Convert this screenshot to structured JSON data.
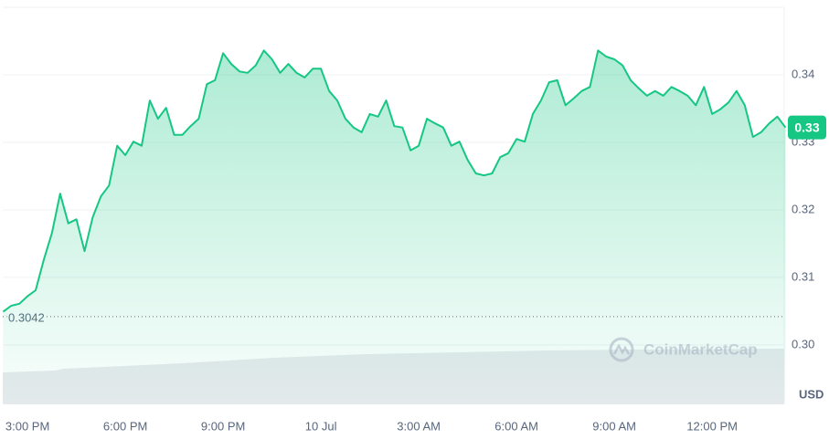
{
  "chart_data": {
    "type": "line",
    "x": [
      14.25,
      14.5,
      14.75,
      15,
      15.25,
      15.5,
      15.75,
      16,
      16.25,
      16.5,
      16.75,
      17,
      17.25,
      17.5,
      17.75,
      18,
      18.25,
      18.5,
      18.75,
      19,
      19.25,
      19.5,
      19.75,
      20,
      20.25,
      20.5,
      20.75,
      21,
      21.25,
      21.5,
      21.75,
      22,
      22.25,
      22.5,
      22.75,
      23,
      23.25,
      23.5,
      23.75,
      24,
      24.25,
      24.5,
      24.75,
      25,
      25.25,
      25.5,
      25.75,
      26,
      26.25,
      26.5,
      26.75,
      27,
      27.25,
      27.5,
      27.75,
      28,
      28.25,
      28.5,
      28.75,
      29,
      29.25,
      29.5,
      29.75,
      30,
      30.25,
      30.5,
      30.75,
      31,
      31.25,
      31.5,
      31.75,
      32,
      32.25,
      32.5,
      32.75,
      33,
      33.25,
      33.5,
      33.75,
      34,
      34.25,
      34.5,
      34.75,
      35,
      35.25,
      35.5,
      35.75,
      36,
      36.25,
      36.5,
      36.75,
      37,
      37.25,
      37.5,
      37.75,
      38,
      38.25
    ],
    "values": [
      0.3049,
      0.3058,
      0.3061,
      0.3072,
      0.3081,
      0.3126,
      0.3166,
      0.3224,
      0.318,
      0.3186,
      0.3139,
      0.3189,
      0.322,
      0.3236,
      0.3295,
      0.3281,
      0.3301,
      0.3295,
      0.3362,
      0.3335,
      0.3351,
      0.3311,
      0.3311,
      0.3324,
      0.3335,
      0.3386,
      0.3392,
      0.3432,
      0.3416,
      0.3405,
      0.3403,
      0.3414,
      0.3436,
      0.3423,
      0.3403,
      0.3416,
      0.3403,
      0.3396,
      0.3409,
      0.3409,
      0.3376,
      0.3362,
      0.3335,
      0.3322,
      0.3315,
      0.3342,
      0.3338,
      0.3362,
      0.3324,
      0.3322,
      0.3288,
      0.3295,
      0.3335,
      0.3328,
      0.3322,
      0.3295,
      0.3301,
      0.3274,
      0.3254,
      0.3251,
      0.3254,
      0.3278,
      0.3284,
      0.3305,
      0.3301,
      0.3342,
      0.3362,
      0.3389,
      0.3392,
      0.3355,
      0.3365,
      0.3376,
      0.3382,
      0.3436,
      0.3427,
      0.3423,
      0.3414,
      0.3392,
      0.338,
      0.3369,
      0.3376,
      0.3369,
      0.3382,
      0.3376,
      0.3369,
      0.3355,
      0.3382,
      0.3342,
      0.3349,
      0.3359,
      0.3376,
      0.3355,
      0.3308,
      0.3315,
      0.3328,
      0.3338,
      0.3322
    ],
    "color": "#16c784",
    "xlim": [
      14.24,
      38.21
    ],
    "xticks": [
      {
        "value": 15,
        "label": "3:00 PM"
      },
      {
        "value": 18,
        "label": "6:00 PM"
      },
      {
        "value": 21,
        "label": "9:00 PM"
      },
      {
        "value": 24,
        "label": "10 Jul"
      },
      {
        "value": 27,
        "label": "3:00 AM"
      },
      {
        "value": 30,
        "label": "6:00 AM"
      },
      {
        "value": 33,
        "label": "9:00 AM"
      },
      {
        "value": 36,
        "label": "12:00 PM"
      }
    ],
    "ylim": [
      0.2912,
      0.35
    ],
    "yticks": [
      {
        "value": 0.3,
        "label": "0.30"
      },
      0.31,
      0.32,
      0.33,
      0.34
    ],
    "grid": true,
    "baseline": 0.3042,
    "current_label": "0.33",
    "y_unit": "USD",
    "watermark": "CoinMarketCap"
  }
}
